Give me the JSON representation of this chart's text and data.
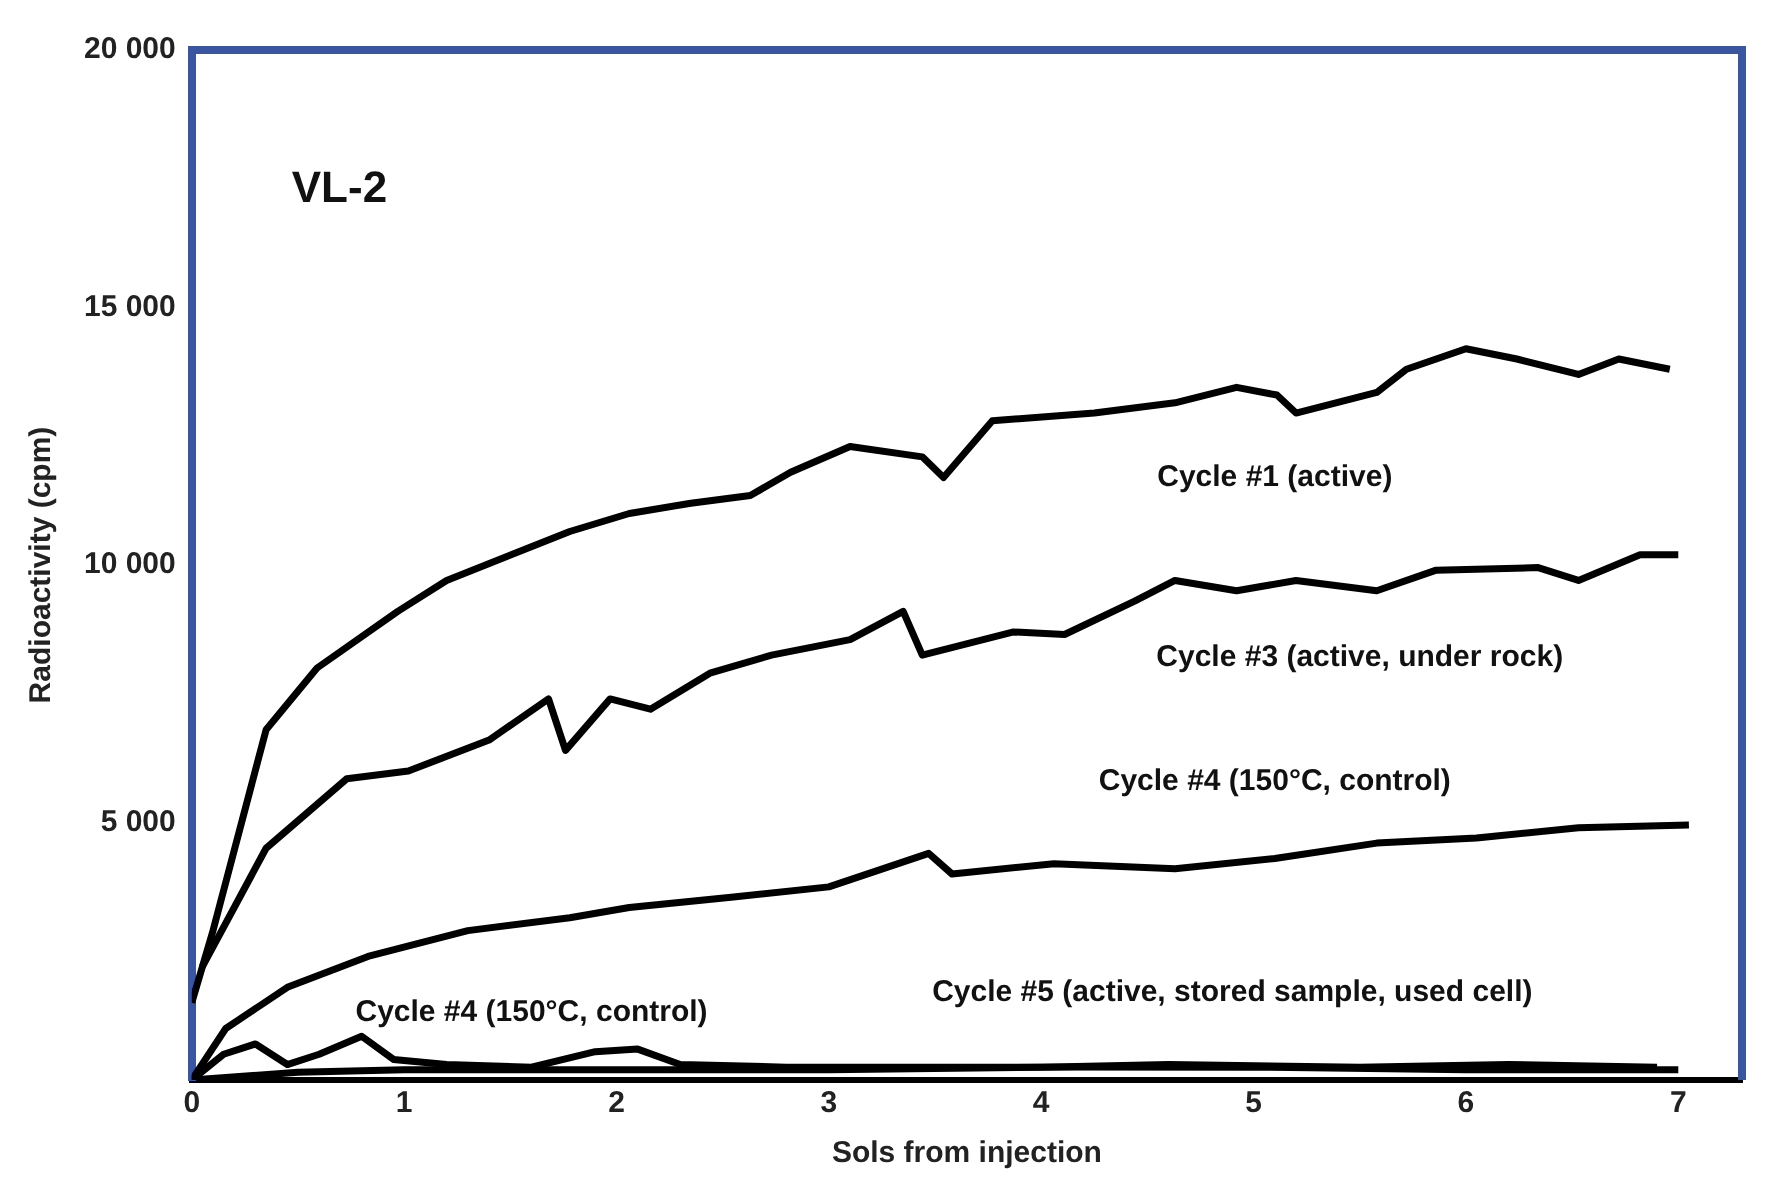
{
  "chart_data": {
    "type": "line",
    "xlabel": "Sols from injection",
    "ylabel": "Radioactivity (cpm)",
    "annotations": [
      "VL-2"
    ],
    "xlim": [
      0,
      7.3
    ],
    "xticks": [
      0,
      1,
      2,
      3,
      4,
      5,
      6,
      7
    ],
    "ylim": [
      0,
      20000
    ],
    "yticks": [
      {
        "value": 5000,
        "label": "5 000"
      },
      {
        "value": 10000,
        "label": "10 000"
      },
      {
        "value": 15000,
        "label": "15 000"
      },
      {
        "value": 20000,
        "label": "20 000"
      }
    ],
    "grid": false,
    "legend": false,
    "marker": "none",
    "line_style": "solid",
    "series": [
      {
        "name": "Cycle #1 (active)",
        "color": "#000000",
        "x": [
          0,
          0.1,
          0.35,
          0.59,
          0.97,
          1.2,
          1.78,
          2.06,
          2.35,
          2.63,
          2.82,
          3.1,
          3.44,
          3.54,
          3.77,
          4.25,
          4.63,
          4.92,
          5.11,
          5.2,
          5.58,
          5.72,
          6.0,
          6.24,
          6.53,
          6.72,
          6.96
        ],
        "values": [
          1500,
          2900,
          6800,
          8000,
          9100,
          9700,
          10650,
          11000,
          11200,
          11350,
          11800,
          12300,
          12100,
          11700,
          12800,
          12950,
          13150,
          13450,
          13300,
          12950,
          13350,
          13800,
          14200,
          14000,
          13700,
          14000,
          13800
        ]
      },
      {
        "name": "Cycle #3 (active, under rock)",
        "color": "#000000",
        "x": [
          0.05,
          0.35,
          0.73,
          1.02,
          1.4,
          1.68,
          1.76,
          1.97,
          2.16,
          2.44,
          2.73,
          3.1,
          3.35,
          3.44,
          3.87,
          4.11,
          4.44,
          4.63,
          4.92,
          5.2,
          5.58,
          5.86,
          6.34,
          6.53,
          6.82,
          7.0
        ],
        "values": [
          2200,
          4500,
          5850,
          6000,
          6600,
          7400,
          6400,
          7400,
          7200,
          7900,
          8250,
          8550,
          9100,
          8250,
          8700,
          8650,
          9300,
          9700,
          9500,
          9700,
          9500,
          9900,
          9950,
          9700,
          10200,
          10200
        ]
      },
      {
        "name": "Cycle #4 (150°C, control)",
        "color": "#000000",
        "x": [
          0,
          0.16,
          0.45,
          0.83,
          1.3,
          1.78,
          2.06,
          2.54,
          3.0,
          3.47,
          3.58,
          4.06,
          4.63,
          5.1,
          5.58,
          6.05,
          6.53,
          7.05
        ],
        "values": [
          0,
          1000,
          1800,
          2400,
          2900,
          3150,
          3350,
          3550,
          3750,
          4400,
          4000,
          4200,
          4100,
          4300,
          4600,
          4700,
          4900,
          4950
        ]
      },
      {
        "name": "Cycle #4 (150°C, control)",
        "color": "#000000",
        "x": [
          0,
          0.15,
          0.3,
          0.45,
          0.6,
          0.8,
          0.95,
          1.2,
          1.6,
          1.9,
          2.1,
          2.3,
          2.8,
          3.5,
          4.0,
          4.6,
          5.5,
          6.2,
          6.9
        ],
        "values": [
          0,
          500,
          700,
          300,
          500,
          850,
          400,
          300,
          250,
          550,
          600,
          300,
          250,
          250,
          250,
          300,
          250,
          300,
          250
        ]
      },
      {
        "name": "Cycle #5 (active, stored sample, used cell)",
        "color": "#000000",
        "x": [
          0,
          0.5,
          1,
          2,
          3,
          4,
          5,
          6,
          7
        ],
        "values": [
          0,
          150,
          200,
          200,
          200,
          250,
          250,
          200,
          200
        ]
      }
    ]
  }
}
